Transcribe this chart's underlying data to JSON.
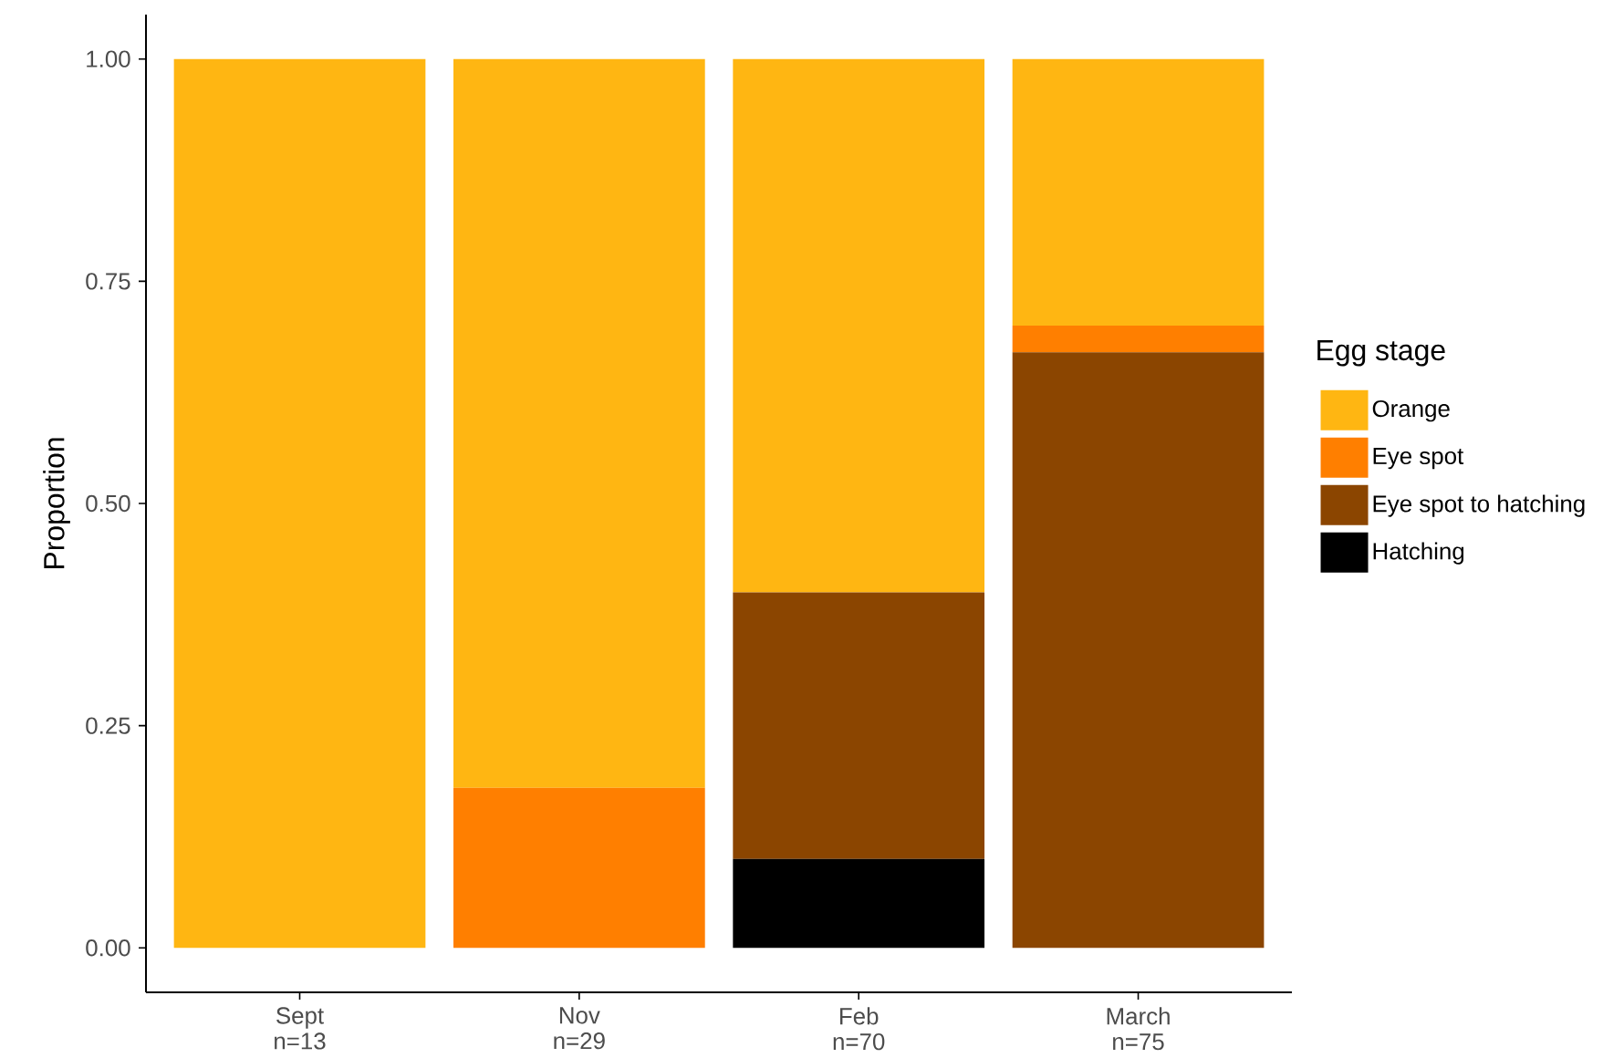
{
  "chart_data": {
    "type": "bar",
    "stacked": true,
    "ylabel": "Proportion",
    "legend_title": "Egg stage",
    "legend": "right",
    "grid": false,
    "categories": [
      "Sept n=13",
      "Nov n=29",
      "Feb n=70",
      "March n=75"
    ],
    "ylim": [
      -0.05,
      1.05
    ],
    "yticks": [
      {
        "value": 0,
        "label": "0.00"
      },
      {
        "value": 0.25,
        "label": "0.25"
      },
      {
        "value": 0.5,
        "label": "0.50"
      },
      {
        "value": 0.75,
        "label": "0.75"
      },
      {
        "value": 1,
        "label": "1.00"
      }
    ],
    "series": [
      {
        "name": "Hatching",
        "color": "#000000",
        "values": [
          0,
          0,
          0.1,
          0
        ]
      },
      {
        "name": "Eye spot to hatching",
        "color": "#8b4500",
        "values": [
          0,
          0,
          0.3,
          0.67
        ]
      },
      {
        "name": "Eye spot",
        "color": "#ff7f00",
        "values": [
          0,
          0.18,
          0,
          0.03
        ]
      },
      {
        "name": "Orange",
        "color": "#ffb612",
        "values": [
          1,
          0.82,
          0.6,
          0.3
        ]
      }
    ]
  }
}
